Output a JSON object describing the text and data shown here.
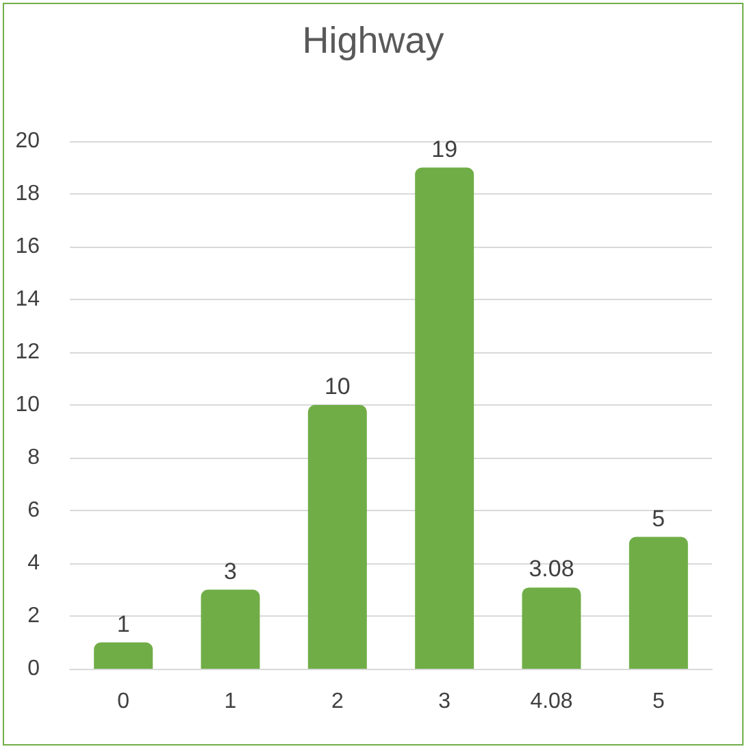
{
  "chart_data": {
    "type": "bar",
    "title": "Highway",
    "categories": [
      "0",
      "1",
      "2",
      "3",
      "4.08",
      "5"
    ],
    "values": [
      1,
      3,
      10,
      19,
      3.08,
      5
    ],
    "color": "#70ad47",
    "ylim": [
      0,
      20
    ],
    "yticks": [
      0,
      2,
      4,
      6,
      8,
      10,
      12,
      14,
      16,
      18,
      20
    ],
    "grid": "y",
    "data_labels": true
  }
}
